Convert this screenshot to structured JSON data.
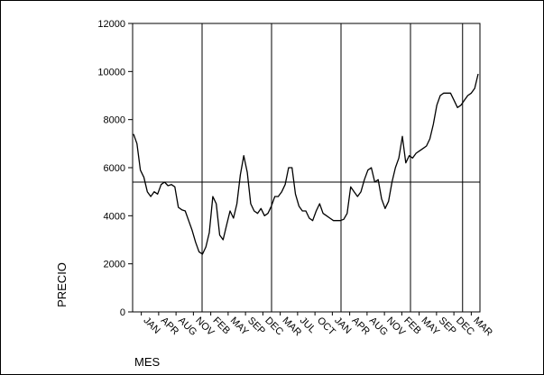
{
  "chart_data": {
    "type": "line",
    "title": "",
    "xlabel": "MES",
    "ylabel": "PRECIO",
    "ylim": [
      0,
      12000
    ],
    "y_ticks": [
      0,
      2000,
      4000,
      6000,
      8000,
      10000,
      12000
    ],
    "x_tick_labels": [
      "JAN",
      "APR",
      "AUG",
      "NOV",
      "FEB",
      "MAY",
      "SEP",
      "DEC",
      "MAR",
      "JUL",
      "OCT",
      "JAN",
      "APR",
      "AUG",
      "NOV",
      "FEB",
      "MAY",
      "SEP",
      "DEC",
      "MAR"
    ],
    "reference_line_y": 5400,
    "grid": false,
    "legend": "none",
    "line_color": "#000000",
    "series": [
      {
        "values": [
          7400,
          7000,
          5900,
          5600,
          5000,
          4800,
          5000,
          4900,
          5300,
          5400,
          5250,
          5300,
          5200,
          4350,
          4250,
          4200,
          3800,
          3400,
          2900,
          2500,
          2400,
          2700,
          3300,
          4800,
          4500,
          3200,
          3000,
          3600,
          4200,
          3900,
          4500,
          5700,
          6500,
          5800,
          4500,
          4200,
          4100,
          4300,
          4000,
          4100,
          4400,
          4800,
          4800,
          5000,
          5300,
          6000,
          6000,
          4900,
          4400,
          4200,
          4200,
          3900,
          3800,
          4200,
          4500,
          4100,
          4000,
          3900,
          3800,
          3800,
          3800,
          3850,
          4100,
          5200,
          5000,
          4800,
          5000,
          5500,
          5900,
          6000,
          5400,
          5500,
          4700,
          4300,
          4600,
          5400,
          6000,
          6400,
          7300,
          6200,
          6500,
          6400,
          6600,
          6700,
          6800,
          6900,
          7200,
          7800,
          8600,
          9000,
          9100,
          9100,
          9100,
          8800,
          8500,
          8600,
          8800,
          9000,
          9100,
          9300,
          9900
        ]
      }
    ]
  }
}
